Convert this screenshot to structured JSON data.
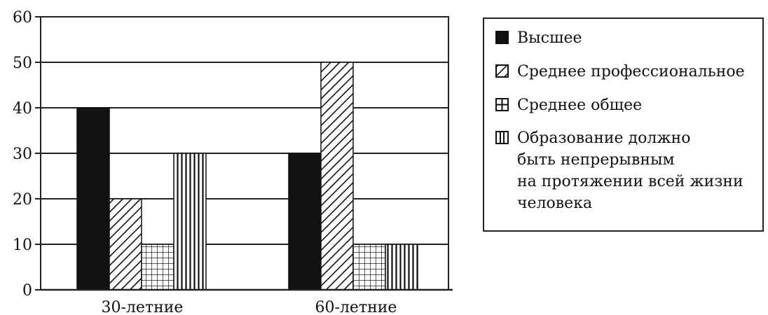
{
  "chart_data": {
    "type": "bar",
    "title": "",
    "xlabel": "",
    "ylabel": "",
    "categories": [
      "30-летние",
      "60-летние"
    ],
    "series": [
      {
        "name": "Высшее",
        "pattern": "solid",
        "values": [
          40,
          30
        ]
      },
      {
        "name": "Среднее профессиональное",
        "pattern": "diagonal",
        "values": [
          20,
          50
        ]
      },
      {
        "name": "Среднее общее",
        "pattern": "grid",
        "values": [
          10,
          10
        ]
      },
      {
        "name": "Образование должно\nбыть непрерывным\nна протяжении всей жизни\nчеловека",
        "pattern": "vertical",
        "values": [
          30,
          10
        ]
      }
    ],
    "ylim": [
      0,
      60
    ],
    "yticks": [
      0,
      10,
      20,
      30,
      40,
      50,
      60
    ],
    "grid": true,
    "legend": "right",
    "colors": {
      "ink": "#111111",
      "background": "#ffffff"
    }
  }
}
